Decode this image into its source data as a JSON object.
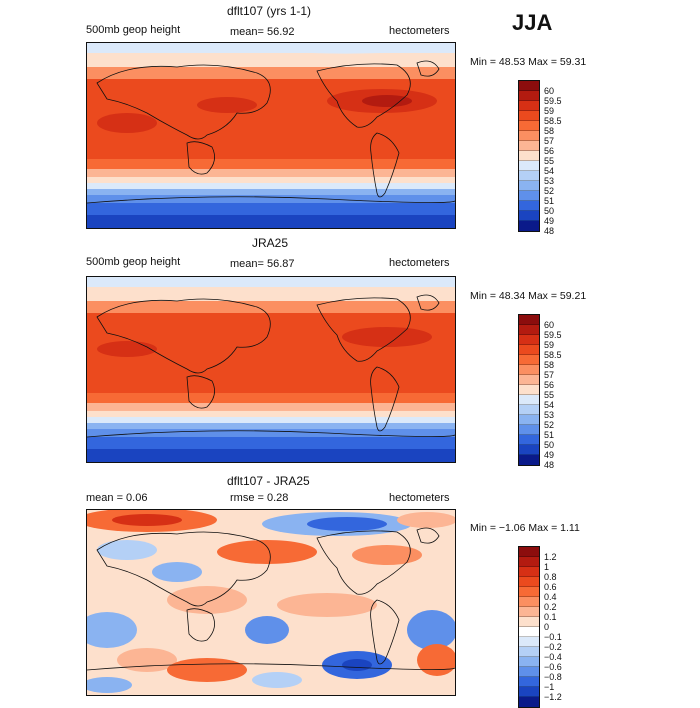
{
  "season": "JJA",
  "panels": [
    {
      "title": "dflt107 (yrs 1-1)",
      "left_text": "500mb geop height",
      "center_text": "mean=   56.92",
      "right_text": "hectometers",
      "stats": "Min =   48.53  Max =   59.31",
      "levels": [
        "60",
        "59.5",
        "59",
        "58.5",
        "58",
        "57",
        "56",
        "55",
        "54",
        "53",
        "52",
        "51",
        "50",
        "49",
        "48"
      ],
      "colors": [
        "#8c0d0d",
        "#b31b10",
        "#d63015",
        "#eb4a1e",
        "#f76a35",
        "#fb8f61",
        "#fcb594",
        "#fde0cc",
        "#dbe9fa",
        "#b4d0f6",
        "#8ab3f1",
        "#5f90ea",
        "#3366dd",
        "#1a44c0",
        "#0a1a8a"
      ]
    },
    {
      "title": "JRA25",
      "left_text": "500mb geop height",
      "center_text": "mean=   56.87",
      "right_text": "hectometers",
      "stats": "Min =   48.34  Max =   59.21",
      "levels": [
        "60",
        "59.5",
        "59",
        "58.5",
        "58",
        "57",
        "56",
        "55",
        "54",
        "53",
        "52",
        "51",
        "50",
        "49",
        "48"
      ],
      "colors": [
        "#8c0d0d",
        "#b31b10",
        "#d63015",
        "#eb4a1e",
        "#f76a35",
        "#fb8f61",
        "#fcb594",
        "#fde0cc",
        "#dbe9fa",
        "#b4d0f6",
        "#8ab3f1",
        "#5f90ea",
        "#3366dd",
        "#1a44c0",
        "#0a1a8a"
      ]
    },
    {
      "title": "dflt107 - JRA25",
      "left_text": "mean =    0.06",
      "center_text": "rmse =    0.28",
      "right_text": "hectometers",
      "stats": "Min =  −1.06  Max =    1.11",
      "levels": [
        "1.2",
        "1",
        "0.8",
        "0.6",
        "0.4",
        "0.2",
        "0.1",
        "0",
        "−0.1",
        "−0.2",
        "−0.4",
        "−0.6",
        "−0.8",
        "−1",
        "−1.2"
      ],
      "colors": [
        "#8c0d0d",
        "#b31b10",
        "#d63015",
        "#eb4a1e",
        "#f76a35",
        "#fb8f61",
        "#fcb594",
        "#fde0cc",
        "#ffffff",
        "#dbe9fa",
        "#b4d0f6",
        "#8ab3f1",
        "#5f90ea",
        "#3366dd",
        "#1a44c0",
        "#0a1a8a"
      ]
    }
  ]
}
